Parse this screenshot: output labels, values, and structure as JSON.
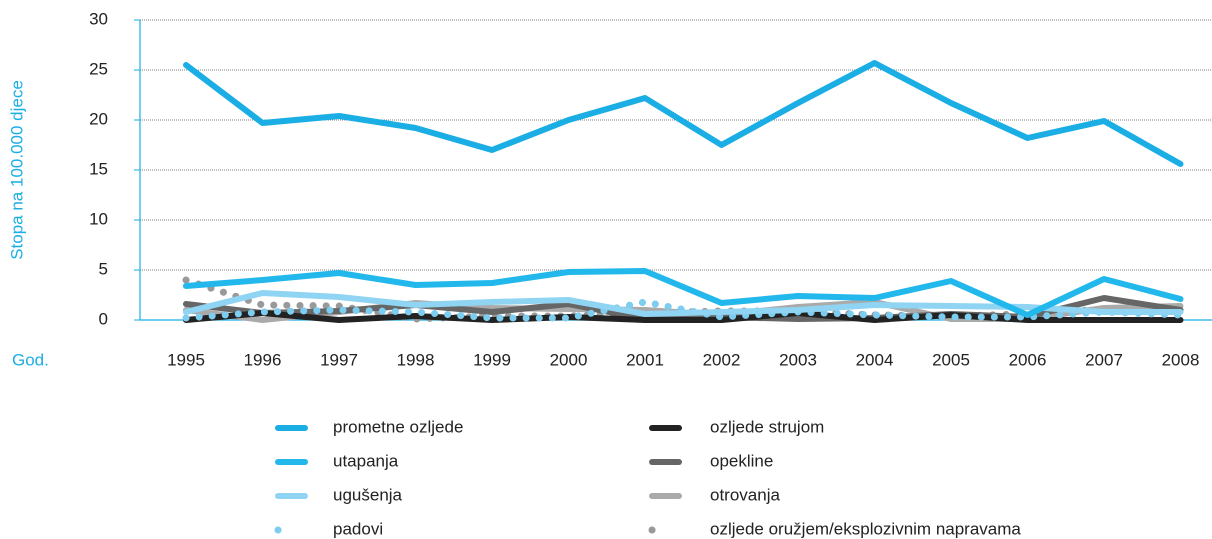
{
  "chart_data": {
    "type": "line",
    "y_label": "Stopa na 100.000 djece",
    "x_label": "God.",
    "categories": [
      "1995",
      "1996",
      "1997",
      "1998",
      "1999",
      "2000",
      "2001",
      "2002",
      "2003",
      "2004",
      "2005",
      "2006",
      "2007",
      "2008"
    ],
    "ylim": [
      0,
      30
    ],
    "yticks": [
      0,
      5,
      10,
      15,
      20,
      25,
      30
    ],
    "grid": true,
    "series": [
      {
        "name": "prometne ozljede",
        "color": "#1aaee5",
        "style": "solid",
        "values": [
          25.5,
          19.7,
          20.4,
          19.2,
          17.0,
          20.0,
          22.2,
          17.5,
          21.7,
          25.7,
          21.7,
          18.2,
          19.9,
          15.6
        ]
      },
      {
        "name": "utapanja",
        "color": "#22b8ec",
        "style": "solid",
        "values": [
          3.4,
          4.0,
          4.7,
          3.5,
          3.7,
          4.8,
          4.9,
          1.7,
          2.4,
          2.2,
          3.9,
          0.5,
          4.1,
          2.1
        ]
      },
      {
        "name": "ugušenja",
        "color": "#8fd4f2",
        "style": "solid",
        "values": [
          0.8,
          2.7,
          2.3,
          1.5,
          1.8,
          2.0,
          0.6,
          0.8,
          1.0,
          1.5,
          1.4,
          1.3,
          0.8,
          0.8
        ]
      },
      {
        "name": "padovi",
        "color": "#7ccdf0",
        "style": "dotted",
        "values": [
          0.2,
          0.8,
          1.0,
          0.8,
          0.2,
          0.2,
          1.8,
          0.3,
          0.8,
          0.5,
          0.3,
          0.3,
          0.8,
          0.5
        ]
      },
      {
        "name": "ozljede strujom",
        "color": "#222222",
        "style": "solid",
        "values": [
          0,
          0.7,
          0,
          0.4,
          0,
          0.3,
          0,
          0,
          0.7,
          0,
          0.5,
          0,
          0,
          0
        ]
      },
      {
        "name": "opekline",
        "color": "#666666",
        "style": "solid",
        "values": [
          1.6,
          0.7,
          0.9,
          1.5,
          0.8,
          1.6,
          0.1,
          0.3,
          0.1,
          0.2,
          0.6,
          0.3,
          2.2,
          1.0
        ]
      },
      {
        "name": "otrovanja",
        "color": "#aaaaaa",
        "style": "solid",
        "values": [
          1.0,
          0.0,
          0.8,
          1.7,
          1.2,
          1.1,
          1.0,
          0.5,
          1.3,
          1.8,
          0.1,
          0.1,
          1.2,
          1.4
        ]
      },
      {
        "name": "ozljede oružjem/eksplozivnim napravama",
        "color": "#999999",
        "style": "dotted",
        "values": [
          4.0,
          1.5,
          1.4,
          0.1,
          0.4,
          0.4,
          0.7,
          0.9,
          0.9,
          0.5,
          0.4,
          0.6,
          1.1,
          1.2
        ]
      }
    ]
  }
}
